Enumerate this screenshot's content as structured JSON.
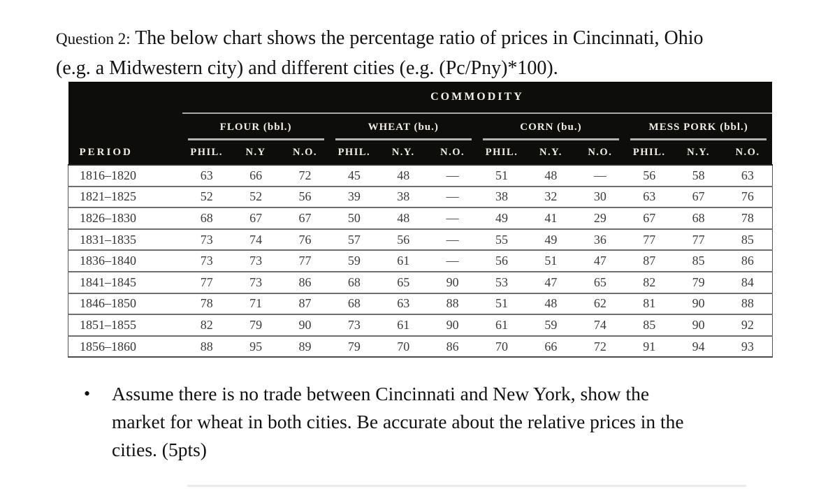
{
  "question": {
    "label": "Question 2:",
    "lines": [
      "The below chart shows the percentage ratio of prices in Cincinnati, Ohio",
      "(e.g. a Midwestern city) and different cities (e.g. (Pc/Pny)*100)."
    ]
  },
  "table": {
    "title": "COMMODITY",
    "period_header": "PERIOD",
    "groups": [
      {
        "label": "FLOUR (bbl.)",
        "cols": [
          "PHIL.",
          "N.Y",
          "N.O."
        ]
      },
      {
        "label": "WHEAT (bu.)",
        "cols": [
          "PHIL.",
          "N.Y.",
          "N.O."
        ]
      },
      {
        "label": "CORN (bu.)",
        "cols": [
          "PHIL.",
          "N.Y.",
          "N.O."
        ]
      },
      {
        "label": "MESS PORK (bbl.)",
        "cols": [
          "PHIL.",
          "N.Y.",
          "N.O."
        ]
      }
    ],
    "rows": [
      {
        "period": "1816–1820",
        "values": [
          "63",
          "66",
          "72",
          "45",
          "48",
          "—",
          "51",
          "48",
          "—",
          "56",
          "58",
          "63"
        ]
      },
      {
        "period": "1821–1825",
        "values": [
          "52",
          "52",
          "56",
          "39",
          "38",
          "—",
          "38",
          "32",
          "30",
          "63",
          "67",
          "76"
        ]
      },
      {
        "period": "1826–1830",
        "values": [
          "68",
          "67",
          "67",
          "50",
          "48",
          "—",
          "49",
          "41",
          "29",
          "67",
          "68",
          "78"
        ]
      },
      {
        "period": "1831–1835",
        "values": [
          "73",
          "74",
          "76",
          "57",
          "56",
          "—",
          "55",
          "49",
          "36",
          "77",
          "77",
          "85"
        ]
      },
      {
        "period": "1836–1840",
        "values": [
          "73",
          "73",
          "77",
          "59",
          "61",
          "—",
          "56",
          "51",
          "47",
          "87",
          "85",
          "86"
        ]
      },
      {
        "period": "1841–1845",
        "values": [
          "77",
          "73",
          "86",
          "68",
          "65",
          "90",
          "53",
          "47",
          "65",
          "82",
          "79",
          "84"
        ]
      },
      {
        "period": "1846–1850",
        "values": [
          "78",
          "71",
          "87",
          "68",
          "63",
          "88",
          "51",
          "48",
          "62",
          "81",
          "90",
          "88"
        ]
      },
      {
        "period": "1851–1855",
        "values": [
          "82",
          "79",
          "90",
          "73",
          "61",
          "90",
          "61",
          "59",
          "74",
          "85",
          "90",
          "92"
        ]
      },
      {
        "period": "1856–1860",
        "values": [
          "88",
          "95",
          "89",
          "79",
          "70",
          "86",
          "70",
          "66",
          "72",
          "91",
          "94",
          "93"
        ]
      }
    ]
  },
  "chart_data": {
    "type": "table",
    "title": "COMMODITY",
    "row_label": "PERIOD",
    "categories": [
      "1816–1820",
      "1821–1825",
      "1826–1830",
      "1831–1835",
      "1836–1840",
      "1841–1845",
      "1846–1850",
      "1851–1855",
      "1856–1860"
    ],
    "series": [
      {
        "name": "FLOUR (bbl.) PHIL.",
        "values": [
          63,
          52,
          68,
          73,
          73,
          77,
          78,
          82,
          88
        ]
      },
      {
        "name": "FLOUR (bbl.) N.Y",
        "values": [
          66,
          52,
          67,
          74,
          73,
          73,
          71,
          79,
          95
        ]
      },
      {
        "name": "FLOUR (bbl.) N.O.",
        "values": [
          72,
          56,
          67,
          76,
          77,
          86,
          87,
          90,
          89
        ]
      },
      {
        "name": "WHEAT (bu.) PHIL.",
        "values": [
          45,
          39,
          50,
          57,
          59,
          68,
          68,
          73,
          79
        ]
      },
      {
        "name": "WHEAT (bu.) N.Y.",
        "values": [
          48,
          38,
          48,
          56,
          61,
          65,
          63,
          61,
          70
        ]
      },
      {
        "name": "WHEAT (bu.) N.O.",
        "values": [
          null,
          null,
          null,
          null,
          null,
          90,
          88,
          90,
          86
        ]
      },
      {
        "name": "CORN (bu.) PHIL.",
        "values": [
          51,
          38,
          49,
          55,
          56,
          53,
          51,
          61,
          70
        ]
      },
      {
        "name": "CORN (bu.) N.Y.",
        "values": [
          48,
          32,
          41,
          49,
          51,
          47,
          48,
          59,
          66
        ]
      },
      {
        "name": "CORN (bu.) N.O.",
        "values": [
          null,
          30,
          29,
          36,
          47,
          65,
          62,
          74,
          72
        ]
      },
      {
        "name": "MESS PORK (bbl.) PHIL.",
        "values": [
          56,
          63,
          67,
          77,
          87,
          82,
          81,
          85,
          91
        ]
      },
      {
        "name": "MESS PORK (bbl.) N.Y.",
        "values": [
          58,
          67,
          68,
          77,
          85,
          79,
          90,
          90,
          94
        ]
      },
      {
        "name": "MESS PORK (bbl.) N.O.",
        "values": [
          63,
          76,
          78,
          85,
          86,
          84,
          88,
          92,
          93
        ]
      }
    ],
    "missing_marker": "—"
  },
  "bullet": {
    "marker": "•",
    "lines": [
      "Assume there is no trade between Cincinnati and New York, show the",
      "market for wheat in both cities. Be accurate about the relative prices in the",
      "cities. (5pts)"
    ]
  },
  "colors": {
    "header_bg": "#0d0d0c",
    "header_text": "#f3efe6",
    "body_text": "#111111",
    "table_text": "#3b3b3b",
    "rule_gray": "#a9a9a9"
  }
}
